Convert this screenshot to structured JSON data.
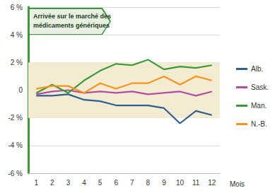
{
  "chart_data": {
    "type": "line",
    "annotation": "Arrivée sur le marché des\nmédicaments génériques",
    "x_label": "Mois",
    "categories": [
      "1",
      "2",
      "3",
      "4",
      "5",
      "6",
      "7",
      "8",
      "9",
      "10",
      "11",
      "12"
    ],
    "series": [
      {
        "name": "Alb.",
        "color": "#2f5f8f",
        "values": [
          -0.4,
          -0.4,
          -0.3,
          -0.7,
          -0.8,
          -1.1,
          -1.1,
          -1.1,
          -1.3,
          -2.4,
          -1.5,
          -1.8
        ]
      },
      {
        "name": "Sask.",
        "color": "#b04fa0",
        "values": [
          -0.3,
          -0.1,
          0.0,
          -0.2,
          -0.1,
          -0.2,
          -0.1,
          -0.3,
          -0.2,
          -0.1,
          -0.4,
          -0.1
        ]
      },
      {
        "name": "Man.",
        "color": "#3a9a3a",
        "values": [
          -0.2,
          0.4,
          -0.2,
          0.7,
          1.4,
          1.9,
          1.8,
          2.2,
          1.5,
          1.7,
          1.6,
          1.8
        ]
      },
      {
        "name": "N.-B.",
        "color": "#f7941d",
        "values": [
          0.1,
          0.3,
          0.3,
          -0.2,
          0.5,
          0.1,
          0.5,
          0.5,
          1.0,
          0.4,
          1.0,
          0.7
        ]
      }
    ],
    "band": [
      -2,
      2
    ],
    "ylim": [
      -6,
      6
    ],
    "yticks": [
      {
        "value": -6,
        "label": "-6 %"
      },
      {
        "value": -4,
        "label": "-4 %"
      },
      {
        "value": -2,
        "label": "-2 %"
      },
      0,
      {
        "value": 2,
        "label": "2 %"
      },
      {
        "value": 4,
        "label": "4 %"
      },
      {
        "value": 6,
        "label": "6 %"
      }
    ],
    "grid": true,
    "legend": "right"
  }
}
